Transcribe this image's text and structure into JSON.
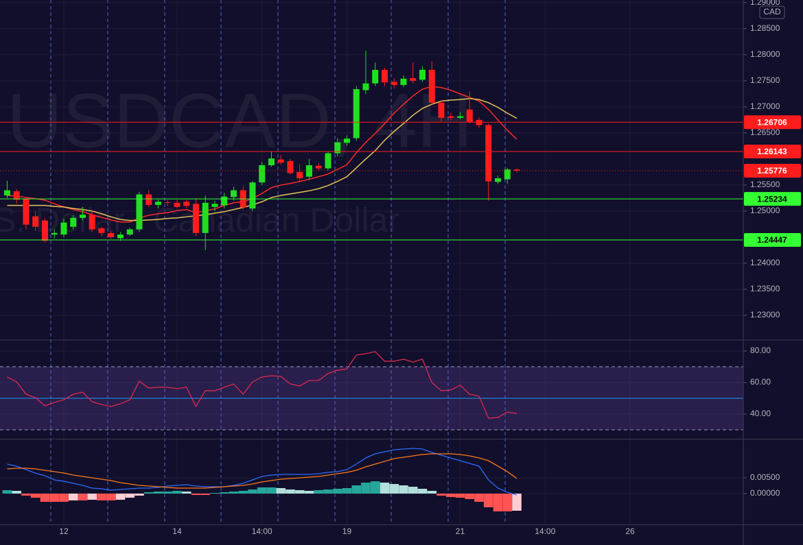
{
  "chart_data": [
    {
      "type": "candlestick",
      "title": "USDCAD, 4H",
      "subtitle": "U.S. Dollar / Canadian Dollar",
      "currency": "CAD",
      "x": [
        0,
        1,
        2,
        3,
        4,
        5,
        6,
        7,
        8,
        9,
        10,
        11,
        12,
        13,
        14,
        15,
        16,
        17,
        18,
        19,
        20,
        21,
        22,
        23,
        24,
        25,
        26,
        27,
        28,
        29,
        30,
        31,
        32,
        33,
        34,
        35,
        36,
        37,
        38,
        39,
        40,
        41,
        42,
        43,
        44,
        45,
        46,
        47,
        48,
        49,
        50,
        51,
        52,
        53,
        54
      ],
      "open": [
        1.253,
        1.2538,
        1.2524,
        1.249,
        1.2482,
        1.2455,
        1.2455,
        1.247,
        1.2487,
        1.2493,
        1.2467,
        1.2458,
        1.2448,
        1.2455,
        1.2465,
        1.2532,
        1.2512,
        1.2517,
        1.2516,
        1.2518,
        1.2514,
        1.2458,
        1.2508,
        1.2511,
        1.2527,
        1.254,
        1.2505,
        1.2555,
        1.2588,
        1.2599,
        1.2596,
        1.2575,
        1.2566,
        1.2587,
        1.2582,
        1.2611,
        1.2631,
        1.264,
        1.2732,
        1.2745,
        1.2771,
        1.2748,
        1.2742,
        1.2755,
        1.2752,
        1.2771,
        1.2708,
        1.2682,
        1.2679,
        1.2695,
        1.2675,
        1.2665,
        1.2556,
        1.2561,
        1.258
      ],
      "high": [
        1.2558,
        1.2542,
        1.2526,
        1.25,
        1.2486,
        1.2465,
        1.2485,
        1.2492,
        1.2508,
        1.25,
        1.247,
        1.2462,
        1.246,
        1.2468,
        1.2537,
        1.254,
        1.2522,
        1.2521,
        1.2522,
        1.2522,
        1.2525,
        1.253,
        1.252,
        1.2535,
        1.2547,
        1.2548,
        1.2558,
        1.2594,
        1.2615,
        1.2608,
        1.26,
        1.259,
        1.26,
        1.2592,
        1.2615,
        1.264,
        1.2645,
        1.274,
        1.2808,
        1.2785,
        1.2775,
        1.2755,
        1.276,
        1.2785,
        1.2778,
        1.2788,
        1.2712,
        1.2688,
        1.269,
        1.273,
        1.268,
        1.2668,
        1.2568,
        1.2583,
        1.2582
      ],
      "low": [
        1.2525,
        1.2515,
        1.2465,
        1.2462,
        1.244,
        1.2448,
        1.245,
        1.2465,
        1.2482,
        1.246,
        1.2452,
        1.2447,
        1.2443,
        1.2452,
        1.246,
        1.2508,
        1.2505,
        1.251,
        1.2505,
        1.2506,
        1.2452,
        1.2425,
        1.25,
        1.2505,
        1.252,
        1.2503,
        1.25,
        1.255,
        1.2585,
        1.2589,
        1.257,
        1.2558,
        1.256,
        1.2578,
        1.2578,
        1.2605,
        1.2625,
        1.2635,
        1.2725,
        1.274,
        1.274,
        1.2735,
        1.2738,
        1.2745,
        1.2748,
        1.2705,
        1.2672,
        1.2675,
        1.2676,
        1.2668,
        1.266,
        1.252,
        1.2552,
        1.2552,
        1.2574
      ],
      "close": [
        1.254,
        1.2522,
        1.2474,
        1.247,
        1.2443,
        1.2458,
        1.2478,
        1.2487,
        1.2493,
        1.2465,
        1.2458,
        1.245,
        1.2455,
        1.2465,
        1.2532,
        1.2512,
        1.2518,
        1.2516,
        1.2508,
        1.251,
        1.2458,
        1.2516,
        1.2514,
        1.2528,
        1.254,
        1.2507,
        1.2555,
        1.2588,
        1.2601,
        1.2593,
        1.2573,
        1.2563,
        1.2588,
        1.2582,
        1.2611,
        1.2632,
        1.2639,
        1.2734,
        1.2745,
        1.2771,
        1.2747,
        1.2742,
        1.2754,
        1.275,
        1.2771,
        1.2708,
        1.2679,
        1.2679,
        1.2682,
        1.2671,
        1.2665,
        1.2557,
        1.2563,
        1.258,
        1.25776
      ],
      "up_color": "#1fe01f",
      "down_color": "#ff1c1c",
      "lines": [
        {
          "color": "#ff2a2a",
          "values": [
            1.253,
            1.2529,
            1.2526,
            1.2524,
            1.2521,
            1.2514,
            1.2508,
            1.2503,
            1.2499,
            1.2493,
            1.2488,
            1.2483,
            1.2479,
            1.2479,
            1.2487,
            1.2492,
            1.2495,
            1.2497,
            1.2501,
            1.2503,
            1.2497,
            1.2501,
            1.2504,
            1.2511,
            1.2516,
            1.2518,
            1.2524,
            1.2534,
            1.2545,
            1.255,
            1.2553,
            1.2557,
            1.2561,
            1.2566,
            1.2571,
            1.258,
            1.2589,
            1.2612,
            1.2632,
            1.2649,
            1.2668,
            1.2688,
            1.2705,
            1.2721,
            1.2734,
            1.2739,
            1.2737,
            1.2732,
            1.2725,
            1.2718,
            1.2711,
            1.2695,
            1.2675,
            1.2655,
            1.2638
          ]
        },
        {
          "color": "#e8c35a",
          "values": [
            1.2511,
            1.2511,
            1.2511,
            1.2511,
            1.2511,
            1.2509,
            1.2508,
            1.2505,
            1.2503,
            1.25,
            1.2495,
            1.2489,
            1.2484,
            1.2482,
            1.2482,
            1.2483,
            1.2484,
            1.2486,
            1.2487,
            1.2489,
            1.2491,
            1.2493,
            1.2496,
            1.2499,
            1.2503,
            1.2507,
            1.2512,
            1.2518,
            1.2526,
            1.253,
            1.2533,
            1.2536,
            1.2539,
            1.2543,
            1.2549,
            1.2557,
            1.2566,
            1.2583,
            1.26,
            1.2616,
            1.2636,
            1.2653,
            1.2668,
            1.2684,
            1.2697,
            1.2705,
            1.2711,
            1.2713,
            1.2714,
            1.2716,
            1.2714,
            1.2708,
            1.2699,
            1.2688,
            1.2678
          ]
        }
      ],
      "levels": [
        {
          "value": 1.26706,
          "color": "#ff1c1c",
          "text_color": "#ffffff",
          "style": "solid"
        },
        {
          "value": 1.26143,
          "color": "#ff1c1c",
          "text_color": "#ffffff",
          "style": "solid"
        },
        {
          "value": 1.25776,
          "color": "#ff1c1c",
          "text_color": "#ffffff",
          "style": "dotted"
        },
        {
          "value": 1.25234,
          "color": "#33ff33",
          "text_color": "#000000",
          "style": "solid"
        },
        {
          "value": 1.24447,
          "color": "#33ff33",
          "text_color": "#000000",
          "style": "solid"
        }
      ],
      "xlim": [
        -0.76,
        78
      ],
      "xticks": [
        {
          "value": 6,
          "label": "12"
        },
        {
          "value": 18,
          "label": "14"
        },
        {
          "value": 27,
          "label": "14:00"
        },
        {
          "value": 36,
          "label": "19"
        },
        {
          "value": 48,
          "label": "21"
        },
        {
          "value": 57,
          "label": "14:00"
        },
        {
          "value": 66,
          "label": "26"
        }
      ],
      "ylim": [
        1.2254,
        1.2905
      ],
      "yticks": [
        {
          "value": 1.23,
          "label": "1.23000"
        },
        {
          "value": 1.235,
          "label": "1.23500"
        },
        {
          "value": 1.24,
          "label": "1.24000"
        },
        {
          "value": 1.25,
          "label": "1.25000"
        },
        {
          "value": 1.255,
          "label": "1.25500"
        },
        {
          "value": 1.265,
          "label": "1.26500"
        },
        {
          "value": 1.27,
          "label": "1.27000"
        },
        {
          "value": 1.275,
          "label": "1.27500"
        },
        {
          "value": 1.28,
          "label": "1.28000"
        },
        {
          "value": 1.285,
          "label": "1.28500"
        },
        {
          "value": 1.29,
          "label": "1.29000"
        }
      ],
      "grid": true
    },
    {
      "type": "rsi",
      "color": "#e0294f",
      "values": [
        63.5,
        60.4,
        52.6,
        50.4,
        45.2,
        47.4,
        49.1,
        52.6,
        53.9,
        47.8,
        46.1,
        44.8,
        46.5,
        49.1,
        60.9,
        56.5,
        57.0,
        57.0,
        56.1,
        57.0,
        44.8,
        54.8,
        54.8,
        57.0,
        59.1,
        52.6,
        60.4,
        63.5,
        64.3,
        63.9,
        59.1,
        57.8,
        61.3,
        61.3,
        65.7,
        67.8,
        68.7,
        77.4,
        78.3,
        79.6,
        73.5,
        73.5,
        74.8,
        73.0,
        74.8,
        60.0,
        54.8,
        55.2,
        58.3,
        52.6,
        51.3,
        37.4,
        37.8,
        41.3,
        40.4
      ],
      "band": [
        30,
        70
      ],
      "band_color": "#7e57c2",
      "midline": 50,
      "midline_color": "#2196f3",
      "ylim": [
        24.35,
        86.52
      ],
      "yticks": [
        {
          "value": 40,
          "label": "40.00"
        },
        {
          "value": 60,
          "label": "60.00"
        },
        {
          "value": 80,
          "label": "80.00"
        }
      ],
      "grid": true
    },
    {
      "type": "macd",
      "macd_color": "#2d6cff",
      "signal_color": "#ff7a1a",
      "macd": [
        0.00935,
        0.0087,
        0.0076,
        0.0065,
        0.00565,
        0.00435,
        0.0039,
        0.00326,
        0.00261,
        0.00174,
        0.00152,
        0.00109,
        0.0013,
        0.00152,
        0.00174,
        0.00174,
        0.00196,
        0.00239,
        0.00261,
        0.00283,
        0.00239,
        0.00217,
        0.00217,
        0.00217,
        0.00261,
        0.00326,
        0.00435,
        0.00543,
        0.00587,
        0.00609,
        0.00609,
        0.00609,
        0.00609,
        0.0063,
        0.00674,
        0.00696,
        0.00761,
        0.00935,
        0.0113,
        0.0126,
        0.01326,
        0.01391,
        0.01413,
        0.01435,
        0.01413,
        0.01304,
        0.01217,
        0.0113,
        0.01043,
        0.00957,
        0.0087,
        0.00435,
        0.00174,
        0.00043,
        -0.00043
      ],
      "signal": [
        0.00783,
        0.00804,
        0.00804,
        0.00783,
        0.00739,
        0.00696,
        0.00652,
        0.00587,
        0.00543,
        0.005,
        0.00457,
        0.00413,
        0.00348,
        0.00304,
        0.00261,
        0.00239,
        0.00217,
        0.00196,
        0.00174,
        0.00174,
        0.00174,
        0.00174,
        0.00196,
        0.00217,
        0.00239,
        0.00261,
        0.00304,
        0.0037,
        0.00413,
        0.00457,
        0.00478,
        0.005,
        0.00522,
        0.00543,
        0.00587,
        0.0063,
        0.00674,
        0.00739,
        0.00848,
        0.00935,
        0.01022,
        0.01109,
        0.01152,
        0.01196,
        0.01239,
        0.01261,
        0.01261,
        0.01261,
        0.01239,
        0.01196,
        0.0113,
        0.01043,
        0.0087,
        0.00696,
        0.00478
      ],
      "histogram": [
        0.00109,
        0.00087,
        -0.00065,
        -0.0013,
        -0.00261,
        -0.00261,
        -0.00261,
        -0.00217,
        -0.00217,
        -0.00196,
        -0.00217,
        -0.00217,
        -0.00196,
        -0.0013,
        -0.00065,
        0.00043,
        0.00065,
        0.00065,
        0.00087,
        0.00065,
        -0.00043,
        -0.00043,
        0.00022,
        0.00043,
        0.00065,
        0.00087,
        0.0013,
        0.00196,
        0.00196,
        0.00174,
        0.0013,
        0.00109,
        0.00087,
        0.00109,
        0.0013,
        0.00152,
        0.00174,
        0.00261,
        0.00348,
        0.00391,
        0.00348,
        0.00304,
        0.00261,
        0.00217,
        0.00152,
        0.00087,
        -0.00065,
        -0.00109,
        -0.0013,
        -0.00174,
        -0.00261,
        -0.00435,
        -0.00565,
        -0.00565,
        -0.00543
      ],
      "histogram_colors": {
        "up_rising": "#26a69a",
        "up_falling": "#b2dfdb",
        "down_falling": "#ff5252",
        "down_rising": "#ffcdd2"
      },
      "ylim": [
        -0.00978,
        0.01717
      ],
      "yticks": [
        {
          "value": 0,
          "label": "0.00000"
        },
        {
          "value": 0.005,
          "label": "0.00500"
        }
      ],
      "grid": true
    }
  ]
}
